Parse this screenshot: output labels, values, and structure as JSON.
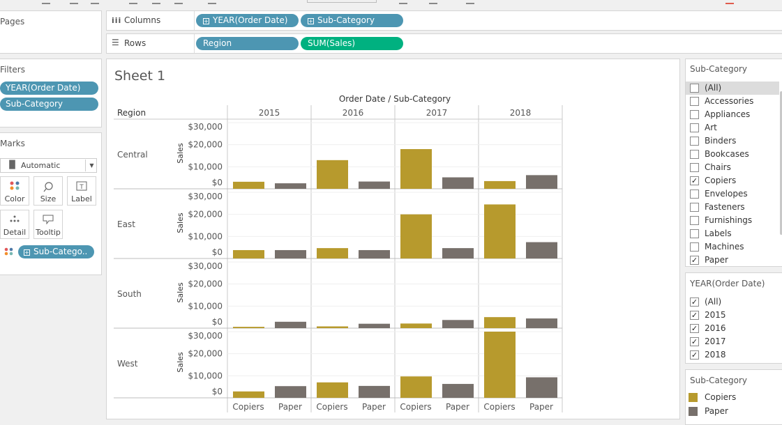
{
  "colors": {
    "copiers": "#b79a2d",
    "paper": "#77706b",
    "pill_blue": "#4d96b2",
    "pill_green": "#00b180"
  },
  "pages": {
    "title": "Pages"
  },
  "filters": {
    "title": "Filters",
    "items": [
      "YEAR(Order Date)",
      "Sub-Category"
    ]
  },
  "marks": {
    "title": "Marks",
    "mark_type": "Automatic",
    "buttons": [
      "Color",
      "Size",
      "Label",
      "Detail",
      "Tooltip"
    ],
    "color_pill": "Sub-Catego.."
  },
  "shelves": {
    "columns_label": "Columns",
    "rows_label": "Rows",
    "columns_pills": [
      "YEAR(Order Date)",
      "Sub-Category"
    ],
    "rows_pills": [
      "Region",
      "SUM(Sales)"
    ]
  },
  "sheet": {
    "title": "Sheet 1",
    "region_header": "Region"
  },
  "chart_data": {
    "type": "bar",
    "title": "Order Date / Sub-Category",
    "ylabel": "Sales",
    "ylim": [
      0,
      30000
    ],
    "y_ticks": [
      "$30,000",
      "$20,000",
      "$10,000",
      "$0"
    ],
    "y_tick_values": [
      30000,
      20000,
      10000,
      0
    ],
    "years": [
      "2015",
      "2016",
      "2017",
      "2018"
    ],
    "categories": [
      "Copiers",
      "Paper"
    ],
    "regions": [
      {
        "name": "Central",
        "copiers": [
          3200,
          13000,
          18000,
          3500
        ],
        "paper": [
          2500,
          3300,
          5200,
          6200
        ]
      },
      {
        "name": "East",
        "copiers": [
          3800,
          4700,
          20000,
          24500
        ],
        "paper": [
          3800,
          3800,
          4700,
          7400
        ]
      },
      {
        "name": "South",
        "copiers": [
          600,
          800,
          2100,
          5000
        ],
        "paper": [
          2900,
          2000,
          3700,
          4400
        ]
      },
      {
        "name": "West",
        "copiers": [
          2900,
          7000,
          9700,
          30000
        ],
        "paper": [
          5300,
          5400,
          6300,
          9300
        ]
      }
    ]
  },
  "subcat_filter": {
    "title": "Sub-Category",
    "items": [
      {
        "label": "(All)",
        "checked": false
      },
      {
        "label": "Accessories",
        "checked": false
      },
      {
        "label": "Appliances",
        "checked": false
      },
      {
        "label": "Art",
        "checked": false
      },
      {
        "label": "Binders",
        "checked": false
      },
      {
        "label": "Bookcases",
        "checked": false
      },
      {
        "label": "Chairs",
        "checked": false
      },
      {
        "label": "Copiers",
        "checked": true
      },
      {
        "label": "Envelopes",
        "checked": false
      },
      {
        "label": "Fasteners",
        "checked": false
      },
      {
        "label": "Furnishings",
        "checked": false
      },
      {
        "label": "Labels",
        "checked": false
      },
      {
        "label": "Machines",
        "checked": false
      },
      {
        "label": "Paper",
        "checked": true
      }
    ]
  },
  "year_filter": {
    "title": "YEAR(Order Date)",
    "items": [
      {
        "label": "(All)",
        "checked": true
      },
      {
        "label": "2015",
        "checked": true
      },
      {
        "label": "2016",
        "checked": true
      },
      {
        "label": "2017",
        "checked": true
      },
      {
        "label": "2018",
        "checked": true
      }
    ]
  },
  "legend": {
    "title": "Sub-Category",
    "items": [
      "Copiers",
      "Paper"
    ]
  }
}
